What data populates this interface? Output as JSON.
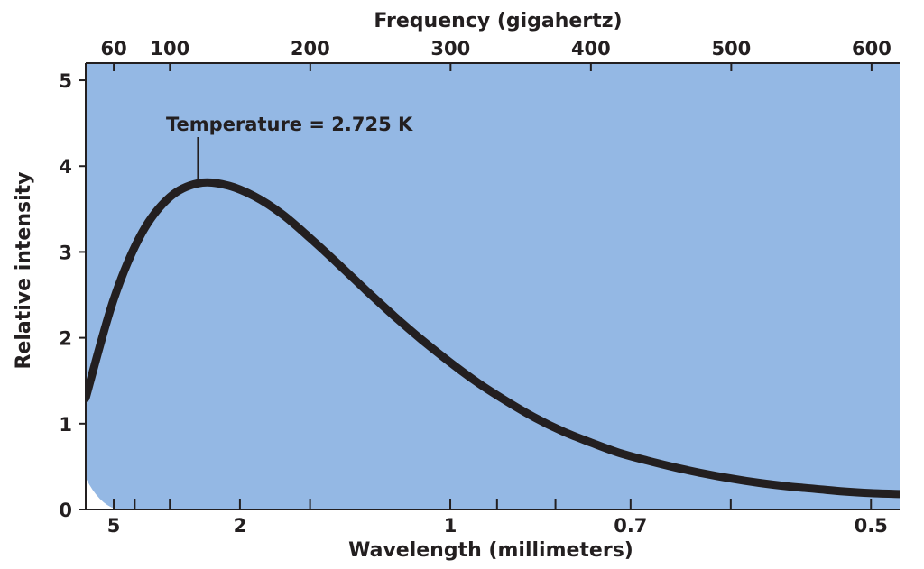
{
  "chart_data": {
    "type": "line",
    "annotation": "Temperature = 2.725  K",
    "top_axis": {
      "label": "Frequency (gigahertz)",
      "ticks": [
        "60",
        "100",
        "200",
        "300",
        "400",
        "500",
        "600"
      ],
      "tick_values": [
        60,
        100,
        200,
        300,
        400,
        500,
        600
      ]
    },
    "bottom_axis": {
      "label": "Wavelength (millimeters)",
      "ticks": [
        "5",
        "2",
        "1",
        "0.7",
        "0.5"
      ],
      "tick_values": [
        5,
        2,
        1,
        0.7,
        0.5
      ],
      "minor_tick_values": [
        3,
        4,
        1.5,
        0.9,
        0.8,
        0.6
      ]
    },
    "left_axis": {
      "label": "Relative intensity",
      "ticks": [
        "0",
        "1",
        "2",
        "3",
        "4",
        "5"
      ],
      "tick_values": [
        0,
        1,
        2,
        3,
        4,
        5
      ],
      "ylim": [
        0,
        5.2
      ]
    },
    "xlim_frequency_ghz": [
      40,
      620
    ],
    "series": [
      {
        "x_frequency_ghz": [
          40,
          60,
          80,
          100,
          120,
          140,
          160,
          180,
          200,
          220,
          240,
          260,
          280,
          300,
          320,
          340,
          360,
          380,
          400,
          420,
          440,
          460,
          480,
          500,
          520,
          540,
          560,
          580,
          600,
          620
        ],
        "y": [
          1.3,
          2.45,
          3.22,
          3.64,
          3.8,
          3.78,
          3.65,
          3.44,
          3.16,
          2.86,
          2.55,
          2.25,
          1.97,
          1.71,
          1.47,
          1.26,
          1.07,
          0.91,
          0.78,
          0.66,
          0.57,
          0.49,
          0.42,
          0.36,
          0.31,
          0.27,
          0.24,
          0.21,
          0.19,
          0.18
        ],
        "color": "#231f20"
      }
    ],
    "background": "cosmic microwave background temperature map",
    "colors": {
      "cold": "#5b86c8",
      "light": "#a9cfe4",
      "cream": "#f3e2b4",
      "warm": "#f2a35e",
      "hot": "#d65a3a"
    }
  }
}
